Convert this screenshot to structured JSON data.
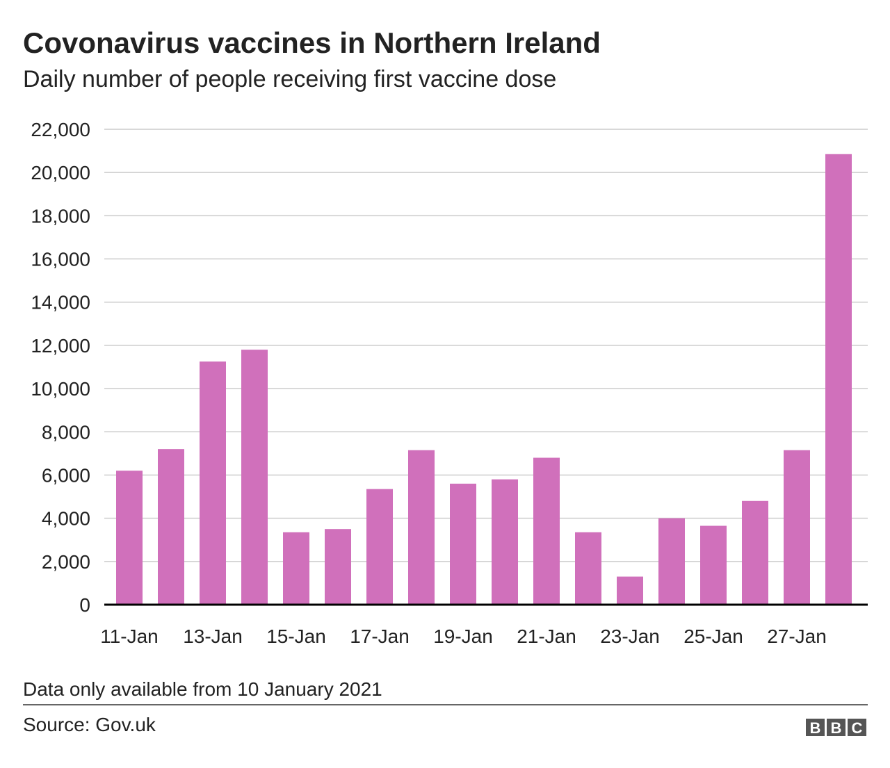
{
  "chart_data": {
    "type": "bar",
    "title": "Covonavirus vaccines in Northern Ireland",
    "subtitle": "Daily number of people receiving first vaccine dose",
    "categories": [
      "11-Jan",
      null,
      "13-Jan",
      null,
      "15-Jan",
      null,
      "17-Jan",
      null,
      "19-Jan",
      null,
      "21-Jan",
      null,
      "23-Jan",
      null,
      "25-Jan",
      null,
      "27-Jan",
      null
    ],
    "values": [
      6200,
      7200,
      11250,
      11800,
      3350,
      3500,
      5350,
      7150,
      5600,
      5800,
      6800,
      3350,
      1300,
      4000,
      3650,
      4800,
      7150,
      20850
    ],
    "color": "#d070bb",
    "ylim": [
      0,
      22000
    ],
    "yticks": [
      0,
      {
        "value": 2000,
        "label": "2,000"
      },
      {
        "value": 4000,
        "label": "4,000"
      },
      {
        "value": 6000,
        "label": "6,000"
      },
      {
        "value": 8000,
        "label": "8,000"
      },
      {
        "value": 10000,
        "label": "10,000"
      },
      {
        "value": 12000,
        "label": "12,000"
      },
      {
        "value": 14000,
        "label": "14,000"
      },
      {
        "value": 16000,
        "label": "16,000"
      },
      {
        "value": 18000,
        "label": "18,000"
      },
      {
        "value": 20000,
        "label": "20,000"
      },
      {
        "value": 22000,
        "label": "22,000"
      }
    ],
    "grid": true,
    "note": "Data only available from 10 January 2021",
    "source": "Source: Gov.uk",
    "logo": [
      "B",
      "B",
      "C"
    ]
  }
}
